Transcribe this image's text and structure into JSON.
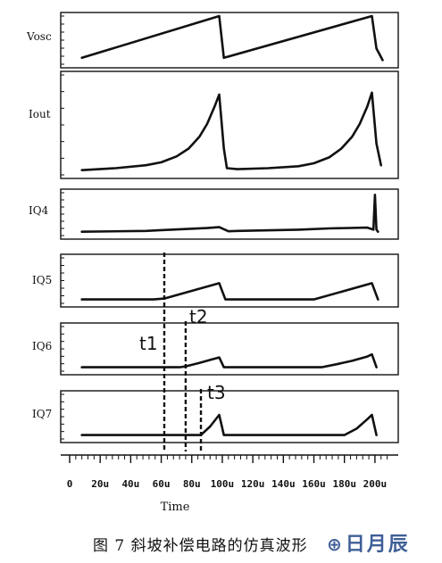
{
  "chart_data": {
    "type": "line",
    "subtype": "stacked-waveforms",
    "x_unit": "u",
    "xlim": [
      0,
      210
    ],
    "xlabel": "Time",
    "x_ticks": [
      "0",
      "20u",
      "40u",
      "60u",
      "80u",
      "100u",
      "120u",
      "140u",
      "160u",
      "180u",
      "200u"
    ],
    "x_tick_values": [
      0,
      20,
      40,
      60,
      80,
      100,
      120,
      140,
      160,
      180,
      200
    ],
    "grid": false,
    "series": [
      {
        "name": "Vosc",
        "ylim": [
          0,
          1
        ],
        "x": [
          8,
          98,
          101,
          198,
          201,
          205
        ],
        "y": [
          0.1,
          1.0,
          0.1,
          1.0,
          0.3,
          0.05
        ]
      },
      {
        "name": "Iout",
        "ylim": [
          0,
          1
        ],
        "x": [
          8,
          30,
          50,
          60,
          70,
          78,
          85,
          90,
          95,
          98,
          101,
          103,
          110,
          130,
          150,
          160,
          170,
          178,
          185,
          190,
          195,
          198,
          201,
          204
        ],
        "y": [
          0.03,
          0.05,
          0.08,
          0.11,
          0.17,
          0.25,
          0.37,
          0.5,
          0.68,
          0.8,
          0.25,
          0.05,
          0.04,
          0.05,
          0.07,
          0.1,
          0.16,
          0.25,
          0.37,
          0.5,
          0.68,
          0.82,
          0.3,
          0.08
        ]
      },
      {
        "name": "IQ4",
        "ylim": [
          0,
          1
        ],
        "x": [
          8,
          50,
          60,
          90,
          98,
          104,
          110,
          150,
          170,
          195,
          199,
          200,
          201,
          202
        ],
        "y": [
          0.05,
          0.07,
          0.09,
          0.14,
          0.16,
          0.06,
          0.07,
          0.1,
          0.13,
          0.15,
          0.1,
          0.95,
          0.1,
          0.05
        ]
      },
      {
        "name": "IQ5",
        "ylim": [
          0,
          1
        ],
        "x": [
          8,
          55,
          62,
          98,
          102,
          105,
          160,
          198,
          202
        ],
        "y": [
          0.05,
          0.05,
          0.07,
          0.42,
          0.05,
          0.05,
          0.05,
          0.42,
          0.05
        ]
      },
      {
        "name": "IQ6",
        "ylim": [
          0,
          1
        ],
        "x": [
          8,
          72,
          76,
          85,
          92,
          98,
          101,
          104,
          165,
          175,
          185,
          195,
          198,
          201
        ],
        "y": [
          0.05,
          0.05,
          0.07,
          0.15,
          0.22,
          0.28,
          0.05,
          0.05,
          0.05,
          0.12,
          0.2,
          0.3,
          0.35,
          0.05
        ]
      },
      {
        "name": "IQ7",
        "ylim": [
          0,
          1
        ],
        "x": [
          8,
          86,
          92,
          98,
          101,
          104,
          180,
          188,
          195,
          198,
          201
        ],
        "y": [
          0.05,
          0.05,
          0.25,
          0.52,
          0.05,
          0.05,
          0.05,
          0.2,
          0.42,
          0.52,
          0.05
        ]
      }
    ],
    "markers": [
      {
        "label": "t1",
        "x": 62,
        "from_panel": 3,
        "to_panel": 5
      },
      {
        "label": "t2",
        "x": 76,
        "from_panel": 4,
        "to_panel": 5
      },
      {
        "label": "t3",
        "x": 86,
        "from_panel": 5,
        "to_panel": 5
      }
    ],
    "panel_labels": [
      "Vosc",
      "Iout",
      "IQ4",
      "IQ5",
      "IQ6",
      "IQ7"
    ]
  },
  "caption": "图 7   斜坡补偿电路的仿真波形",
  "watermark": {
    "logo": "⊕",
    "text": "日月辰"
  },
  "colors": {
    "ink": "#111111",
    "watermark": "#3f5f97"
  }
}
